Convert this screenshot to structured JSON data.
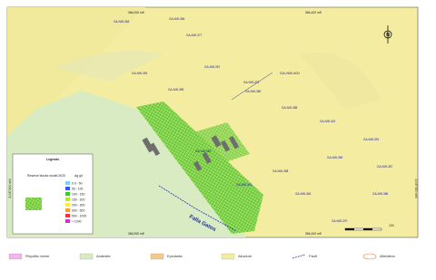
{
  "map": {
    "coords": {
      "top": [
        "366,000 mE",
        "366,400 mE"
      ],
      "bottom": [
        "366,000 mE",
        "366,400 mE"
      ],
      "left": "3,047,600 mN",
      "right": "3,047,600 mN"
    },
    "fault_name": "Falla Gatos",
    "north": "N",
    "scale": "100",
    "holes": [
      "GA-NW-400",
      "GA-NW-372",
      "GA-NW-380",
      "GA-NW-356",
      "GA-NW-363",
      "GA-NW-377",
      "GA-NW-393",
      "GA-NW-359",
      "GA-NW-357",
      "GA-NW-388",
      "GA-NW-402",
      "GA-NW-391",
      "GA-NW-367",
      "GA-NW-369",
      "GA-NW-398",
      "GA-NW-401",
      "GA-NW-364",
      "GA-NW-382",
      "GA-NW-386",
      "GA-NW-370"
    ],
    "legend": {
      "title": "Legends",
      "blocks_title": "Reserve blocks model 2020",
      "grade_title": "Ag g/t",
      "classes": [
        "0.0 - 50",
        "50 - 100",
        "100 - 150",
        "150 - 200",
        "200 - 300",
        "300 - 500",
        "500 - 1000",
        "> 1000"
      ]
    }
  },
  "footer_legend": [
    "Rhyolitic dome",
    "Andesite",
    "Epiclastic",
    "Alluvium",
    "Fault",
    "Alteration"
  ]
}
